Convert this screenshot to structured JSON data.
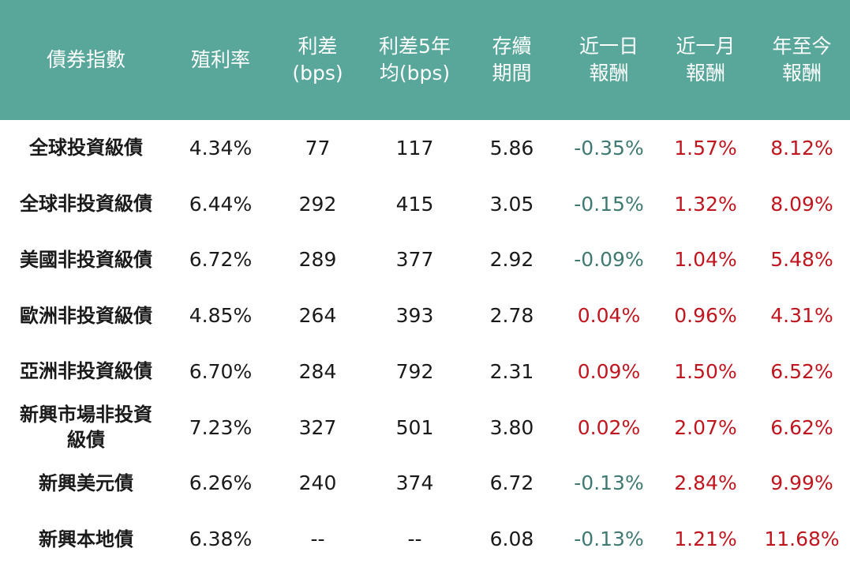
{
  "table": {
    "headers": [
      "債券指數",
      "殖利率",
      "利差\n(bps)",
      "利差5年\n均(bps)",
      "存續\n期間",
      "近一日\n報酬",
      "近一月\n報酬",
      "年至今\n報酬"
    ],
    "rows": [
      {
        "name": "全球投資級債",
        "yield": "4.34%",
        "spread": "77",
        "spread5y": "117",
        "duration": "5.86",
        "ret1d": "-0.35%",
        "ret1m": "1.57%",
        "ytd": "8.12%"
      },
      {
        "name": "全球非投資級債",
        "yield": "6.44%",
        "spread": "292",
        "spread5y": "415",
        "duration": "3.05",
        "ret1d": "-0.15%",
        "ret1m": "1.32%",
        "ytd": "8.09%"
      },
      {
        "name": "美國非投資級債",
        "yield": "6.72%",
        "spread": "289",
        "spread5y": "377",
        "duration": "2.92",
        "ret1d": "-0.09%",
        "ret1m": "1.04%",
        "ytd": "5.48%"
      },
      {
        "name": "歐洲非投資級債",
        "yield": "4.85%",
        "spread": "264",
        "spread5y": "393",
        "duration": "2.78",
        "ret1d": "0.04%",
        "ret1m": "0.96%",
        "ytd": "4.31%"
      },
      {
        "name": "亞洲非投資級債",
        "yield": "6.70%",
        "spread": "284",
        "spread5y": "792",
        "duration": "2.31",
        "ret1d": "0.09%",
        "ret1m": "1.50%",
        "ytd": "6.52%"
      },
      {
        "name": "新興市場非投資\n級債",
        "yield": "7.23%",
        "spread": "327",
        "spread5y": "501",
        "duration": "3.80",
        "ret1d": "0.02%",
        "ret1m": "2.07%",
        "ytd": "6.62%"
      },
      {
        "name": "新興美元債",
        "yield": "6.26%",
        "spread": "240",
        "spread5y": "374",
        "duration": "6.72",
        "ret1d": "-0.13%",
        "ret1m": "2.84%",
        "ytd": "9.99%"
      },
      {
        "name": "新興本地債",
        "yield": "6.38%",
        "spread": "--",
        "spread5y": "--",
        "duration": "6.08",
        "ret1d": "-0.13%",
        "ret1m": "1.21%",
        "ytd": "11.68%"
      }
    ]
  },
  "colors": {
    "header_bg": "#58a79a",
    "negative": "#3f7a72",
    "positive": "#c0161f"
  }
}
